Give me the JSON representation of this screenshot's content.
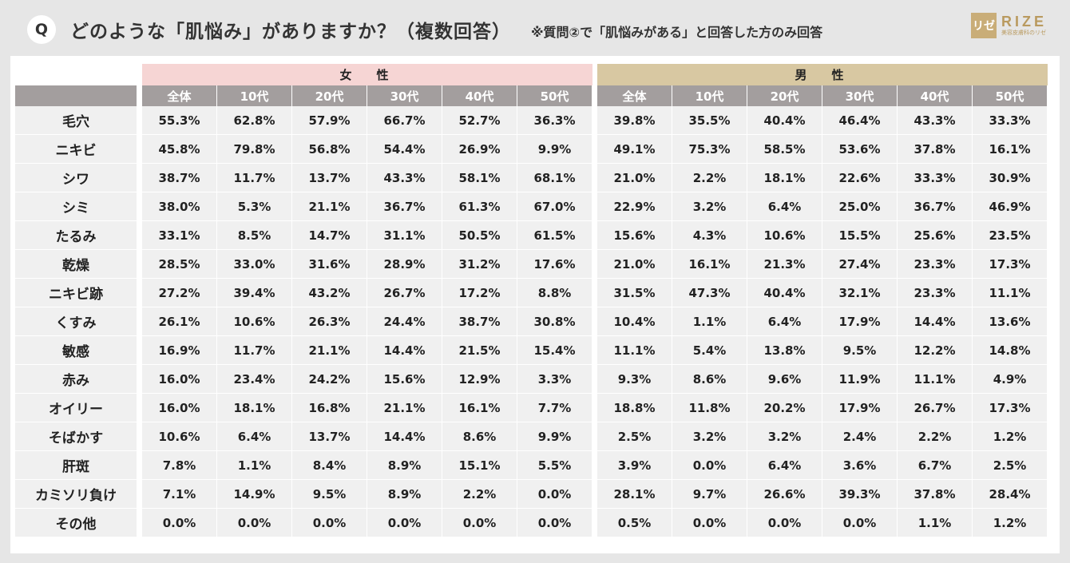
{
  "header": {
    "q_badge": "Q",
    "title": "どのような「肌悩み」がありますか？（複数回答）",
    "note": "※質問②で「肌悩みがある」と回答した方のみ回答",
    "logo_mark": "リゼ",
    "logo_text": "RIZE",
    "logo_sub": "美容皮膚科のリゼ"
  },
  "chart_data": {
    "type": "table",
    "groups": [
      {
        "name": "女　性",
        "columns": [
          "全体",
          "10代",
          "20代",
          "30代",
          "40代",
          "50代"
        ]
      },
      {
        "name": "男　性",
        "columns": [
          "全体",
          "10代",
          "20代",
          "30代",
          "40代",
          "50代"
        ]
      }
    ],
    "rows": [
      {
        "label": "毛穴",
        "female": [
          "55.3%",
          "62.8%",
          "57.9%",
          "66.7%",
          "52.7%",
          "36.3%"
        ],
        "male": [
          "39.8%",
          "35.5%",
          "40.4%",
          "46.4%",
          "43.3%",
          "33.3%"
        ]
      },
      {
        "label": "ニキビ",
        "female": [
          "45.8%",
          "79.8%",
          "56.8%",
          "54.4%",
          "26.9%",
          "9.9%"
        ],
        "male": [
          "49.1%",
          "75.3%",
          "58.5%",
          "53.6%",
          "37.8%",
          "16.1%"
        ]
      },
      {
        "label": "シワ",
        "female": [
          "38.7%",
          "11.7%",
          "13.7%",
          "43.3%",
          "58.1%",
          "68.1%"
        ],
        "male": [
          "21.0%",
          "2.2%",
          "18.1%",
          "22.6%",
          "33.3%",
          "30.9%"
        ]
      },
      {
        "label": "シミ",
        "female": [
          "38.0%",
          "5.3%",
          "21.1%",
          "36.7%",
          "61.3%",
          "67.0%"
        ],
        "male": [
          "22.9%",
          "3.2%",
          "6.4%",
          "25.0%",
          "36.7%",
          "46.9%"
        ]
      },
      {
        "label": "たるみ",
        "female": [
          "33.1%",
          "8.5%",
          "14.7%",
          "31.1%",
          "50.5%",
          "61.5%"
        ],
        "male": [
          "15.6%",
          "4.3%",
          "10.6%",
          "15.5%",
          "25.6%",
          "23.5%"
        ]
      },
      {
        "label": "乾燥",
        "female": [
          "28.5%",
          "33.0%",
          "31.6%",
          "28.9%",
          "31.2%",
          "17.6%"
        ],
        "male": [
          "21.0%",
          "16.1%",
          "21.3%",
          "27.4%",
          "23.3%",
          "17.3%"
        ]
      },
      {
        "label": "ニキビ跡",
        "female": [
          "27.2%",
          "39.4%",
          "43.2%",
          "26.7%",
          "17.2%",
          "8.8%"
        ],
        "male": [
          "31.5%",
          "47.3%",
          "40.4%",
          "32.1%",
          "23.3%",
          "11.1%"
        ]
      },
      {
        "label": "くすみ",
        "female": [
          "26.1%",
          "10.6%",
          "26.3%",
          "24.4%",
          "38.7%",
          "30.8%"
        ],
        "male": [
          "10.4%",
          "1.1%",
          "6.4%",
          "17.9%",
          "14.4%",
          "13.6%"
        ]
      },
      {
        "label": "敏感",
        "female": [
          "16.9%",
          "11.7%",
          "21.1%",
          "14.4%",
          "21.5%",
          "15.4%"
        ],
        "male": [
          "11.1%",
          "5.4%",
          "13.8%",
          "9.5%",
          "12.2%",
          "14.8%"
        ]
      },
      {
        "label": "赤み",
        "female": [
          "16.0%",
          "23.4%",
          "24.2%",
          "15.6%",
          "12.9%",
          "3.3%"
        ],
        "male": [
          "9.3%",
          "8.6%",
          "9.6%",
          "11.9%",
          "11.1%",
          "4.9%"
        ]
      },
      {
        "label": "オイリー",
        "female": [
          "16.0%",
          "18.1%",
          "16.8%",
          "21.1%",
          "16.1%",
          "7.7%"
        ],
        "male": [
          "18.8%",
          "11.8%",
          "20.2%",
          "17.9%",
          "26.7%",
          "17.3%"
        ]
      },
      {
        "label": "そばかす",
        "female": [
          "10.6%",
          "6.4%",
          "13.7%",
          "14.4%",
          "8.6%",
          "9.9%"
        ],
        "male": [
          "2.5%",
          "3.2%",
          "3.2%",
          "2.4%",
          "2.2%",
          "1.2%"
        ]
      },
      {
        "label": "肝斑",
        "female": [
          "7.8%",
          "1.1%",
          "8.4%",
          "8.9%",
          "15.1%",
          "5.5%"
        ],
        "male": [
          "3.9%",
          "0.0%",
          "6.4%",
          "3.6%",
          "6.7%",
          "2.5%"
        ]
      },
      {
        "label": "カミソリ負け",
        "female": [
          "7.1%",
          "14.9%",
          "9.5%",
          "8.9%",
          "2.2%",
          "0.0%"
        ],
        "male": [
          "28.1%",
          "9.7%",
          "26.6%",
          "39.3%",
          "37.8%",
          "28.4%"
        ]
      },
      {
        "label": "その他",
        "female": [
          "0.0%",
          "0.0%",
          "0.0%",
          "0.0%",
          "0.0%",
          "0.0%"
        ],
        "male": [
          "0.5%",
          "0.0%",
          "0.0%",
          "0.0%",
          "1.1%",
          "1.2%"
        ]
      }
    ]
  },
  "colors": {
    "female_header": "#f6d5d4",
    "male_header": "#d8c8a2",
    "age_header": "#a39e9e",
    "cell_bg": "#f0f0f0",
    "page_bg": "#e6e6e6",
    "logo": "#c9ad78"
  }
}
